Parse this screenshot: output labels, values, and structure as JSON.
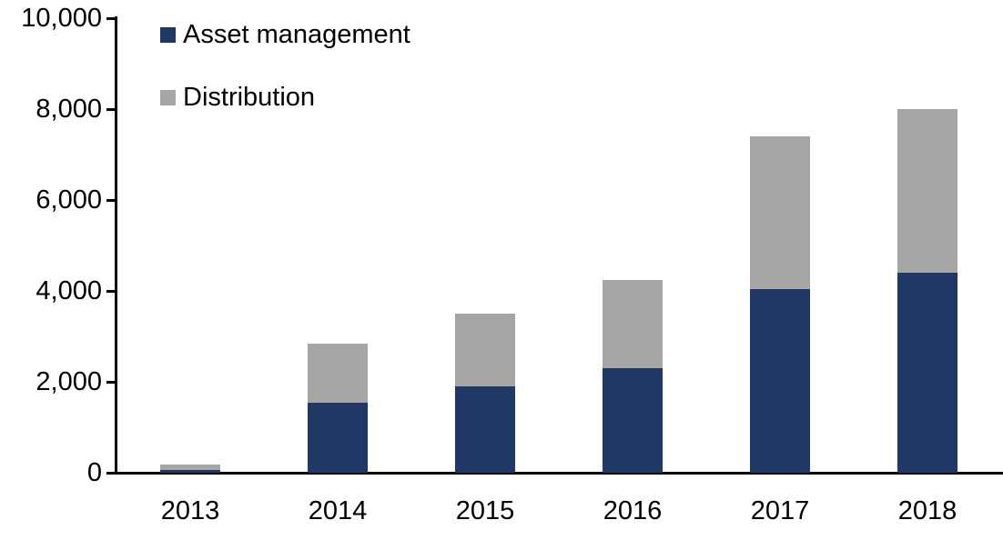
{
  "chart_data": {
    "type": "bar",
    "stacked": true,
    "title": "",
    "xlabel": "",
    "ylabel": "",
    "categories": [
      "2013",
      "2014",
      "2015",
      "2016",
      "2017",
      "2018"
    ],
    "series": [
      {
        "name": "Asset management",
        "color": "#1F3864",
        "values": [
          70,
          1550,
          1900,
          2300,
          4050,
          4400
        ]
      },
      {
        "name": "Distribution",
        "color": "#A6A6A6",
        "values": [
          110,
          1300,
          1600,
          1950,
          3350,
          3600
        ]
      }
    ],
    "totals": [
      180,
      2850,
      3500,
      4250,
      7400,
      8000
    ],
    "ylim": [
      0,
      10000
    ],
    "ytick_interval": 2000,
    "ytick_labels": [
      "0",
      "2,000",
      "4,000",
      "6,000",
      "8,000",
      "10,000"
    ],
    "grid": false,
    "legend_position": "top-left-inside"
  },
  "legend": {
    "items": [
      {
        "label": "Asset management",
        "color": "#1F3864"
      },
      {
        "label": "Distribution",
        "color": "#A6A6A6"
      }
    ]
  },
  "colors": {
    "axis": "#000000",
    "background": "#FFFFFF",
    "text": "#000000",
    "asset_management": "#1F3864",
    "distribution": "#A6A6A6"
  }
}
